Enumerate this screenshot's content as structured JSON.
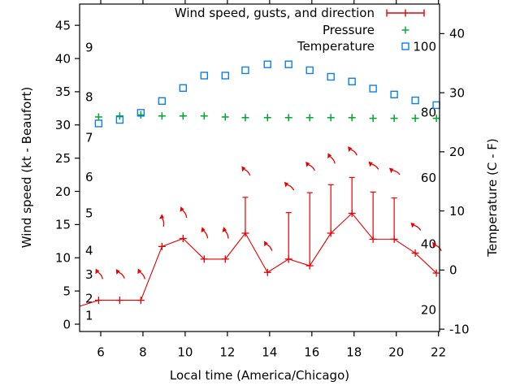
{
  "page": {
    "background": "#ffffff"
  },
  "colors": {
    "wind": "#e60000",
    "pressure": "#00a62c",
    "temperature": "#0e80e4",
    "axis": "#000000",
    "text": "#000000"
  },
  "chart_data": {
    "type": "line",
    "title": "",
    "grid": "off",
    "x_axis": {
      "label": "Local time (America/Chicago)",
      "ticks": [
        6,
        8,
        10,
        12,
        14,
        16,
        18,
        20,
        22
      ],
      "range": [
        5,
        22.05
      ]
    },
    "y_left_axis": {
      "label": "Wind speed (kt - Beaufort)",
      "ticks": [
        0,
        5,
        10,
        15,
        20,
        25,
        30,
        35,
        40,
        45
      ],
      "range": [
        -1.1,
        48.2
      ]
    },
    "y_right_axis": {
      "label": "Temperature (C - F)",
      "ticks": [
        -10,
        0,
        10,
        20,
        30,
        40
      ],
      "range": [
        -10.4,
        45.0
      ]
    },
    "beaufort_scale_labels": [
      {
        "text": "1",
        "kt": 1.3
      },
      {
        "text": "2",
        "kt": 3.9
      },
      {
        "text": "3",
        "kt": 7.5
      },
      {
        "text": "4",
        "kt": 11.1
      },
      {
        "text": "5",
        "kt": 16.7
      },
      {
        "text": "6",
        "kt": 22.2
      },
      {
        "text": "7",
        "kt": 28.1
      },
      {
        "text": "8",
        "kt": 34.2
      },
      {
        "text": "9",
        "kt": 41.7
      }
    ],
    "fahrenheit_scale_labels": [
      {
        "text": "20",
        "c": -6.7
      },
      {
        "text": "40",
        "c": 4.4
      },
      {
        "text": "60",
        "c": 15.6
      },
      {
        "text": "80",
        "c": 26.7
      },
      {
        "text": "100",
        "c": 37.8
      }
    ],
    "legend": {
      "position": "top-right-inside",
      "entries": [
        {
          "label": "Wind speed, gusts, and direction",
          "marker": "errorbar-line",
          "color_key": "wind"
        },
        {
          "label": "Pressure",
          "marker": "plus",
          "color_key": "pressure"
        },
        {
          "label": "Temperature",
          "marker": "open-square",
          "color_key": "temperature"
        }
      ]
    },
    "series": {
      "time_h": [
        5.9,
        6.9,
        7.9,
        8.9,
        9.9,
        10.9,
        11.9,
        12.85,
        13.9,
        14.9,
        15.9,
        16.9,
        17.9,
        18.9,
        19.9,
        20.9,
        21.9
      ],
      "wind_speed_kt": [
        3.6,
        3.6,
        3.6,
        11.7,
        12.9,
        9.8,
        9.8,
        13.7,
        7.8,
        9.8,
        8.8,
        13.7,
        16.7,
        12.8,
        12.8,
        10.7,
        7.7
      ],
      "wind_gust_kt": [
        null,
        null,
        null,
        null,
        null,
        null,
        null,
        19.1,
        null,
        16.8,
        19.8,
        21.0,
        22.1,
        19.9,
        19.0,
        null,
        null
      ],
      "wind_dir_arrow_tilt_deg_left_of_vertical": [
        27,
        36,
        27,
        0,
        21,
        20,
        15,
        35,
        32,
        42,
        39,
        27,
        39,
        45,
        51,
        45,
        39
      ],
      "pressure_plotted_on_left_axis": [
        31.2,
        31.35,
        31.5,
        31.35,
        31.35,
        31.35,
        31.2,
        31.1,
        31.1,
        31.1,
        31.1,
        31.1,
        31.1,
        31.0,
        31.0,
        31.0,
        31.0
      ],
      "temperature_c": [
        24.8,
        25.4,
        26.6,
        28.6,
        30.8,
        32.9,
        32.9,
        33.8,
        34.8,
        34.8,
        33.8,
        32.7,
        31.9,
        30.7,
        29.7,
        28.7,
        27.9
      ]
    },
    "wind_entry_point": {
      "time_h": 4.9,
      "wind_kt": 2.6
    }
  }
}
